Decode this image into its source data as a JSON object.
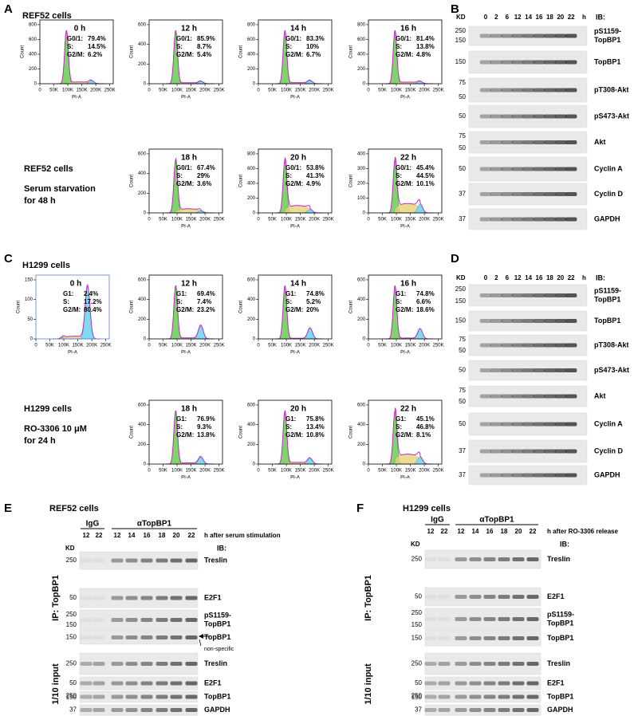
{
  "panels": {
    "A": {
      "label": "A",
      "title": "REF52 cells",
      "note": [
        "REF52 cells",
        "Serum starvation",
        "for 48 h"
      ],
      "xlabel": "PI-A",
      "ylabel": "Count",
      "xticks": [
        0,
        {
          "value": 50000,
          "label": "50K"
        },
        {
          "value": 100000,
          "label": "100K"
        },
        {
          "value": 150000,
          "label": "150K"
        },
        {
          "value": 200000,
          "label": "200K"
        },
        {
          "value": 250000,
          "label": "250K"
        }
      ],
      "plots": [
        {
          "time": "0 h",
          "yticks": [
            0,
            200,
            400,
            600,
            800
          ],
          "stats": [
            [
              "G0/1:",
              "79.4%"
            ],
            [
              "S:",
              "14.5%"
            ],
            [
              "G2/M:",
              "6.2%"
            ]
          ]
        },
        {
          "time": "12 h",
          "yticks": [
            0,
            200,
            400,
            600
          ],
          "stats": [
            [
              "G0/1:",
              "85.9%"
            ],
            [
              "S:",
              "8.7%"
            ],
            [
              "G2/M:",
              "5.4%"
            ]
          ]
        },
        {
          "time": "14 h",
          "yticks": [
            0,
            200,
            400,
            600,
            800
          ],
          "stats": [
            [
              "G0/1:",
              "83.3%"
            ],
            [
              "S:",
              "10%"
            ],
            [
              "G2/M:",
              "6.7%"
            ]
          ]
        },
        {
          "time": "16 h",
          "yticks": [
            0,
            200,
            400,
            600,
            800
          ],
          "stats": [
            [
              "G0/1:",
              "81.4%"
            ],
            [
              "S:",
              "13.8%"
            ],
            [
              "G2/M:",
              "4.8%"
            ]
          ]
        },
        {
          "time": "18 h",
          "yticks": [
            0,
            200,
            400,
            600
          ],
          "stats": [
            [
              "G0/1:",
              "67.4%"
            ],
            [
              "S:",
              "29%"
            ],
            [
              "G2/M:",
              "3.6%"
            ]
          ]
        },
        {
          "time": "20 h",
          "yticks": [
            0,
            200,
            400,
            600,
            800
          ],
          "stats": [
            [
              "G0/1:",
              "53.8%"
            ],
            [
              "S:",
              "41.3%"
            ],
            [
              "G2/M:",
              "4.9%"
            ]
          ]
        },
        {
          "time": "22 h",
          "yticks": [
            0,
            100,
            200,
            300,
            400
          ],
          "stats": [
            [
              "G0/1:",
              "45.4%"
            ],
            [
              "S:",
              "44.5%"
            ],
            [
              "G2/M:",
              "10.1%"
            ]
          ]
        }
      ]
    },
    "B": {
      "label": "B",
      "kd": "KD",
      "lanes": [
        "0",
        "2",
        "6",
        "12",
        "14",
        "16",
        "18",
        "20",
        "22"
      ],
      "unit": "h",
      "ib": "IB:",
      "rows": [
        {
          "kd": [
            "250",
            "150"
          ],
          "name": [
            "pS1159-",
            "TopBP1"
          ]
        },
        {
          "kd": [
            "150"
          ],
          "name": [
            "TopBP1"
          ]
        },
        {
          "kd": [
            "75",
            "50"
          ],
          "name": [
            "pT308-Akt"
          ]
        },
        {
          "kd": [
            "50"
          ],
          "name": [
            "pS473-Akt"
          ]
        },
        {
          "kd": [
            "75",
            "50"
          ],
          "name": [
            "Akt"
          ]
        },
        {
          "kd": [
            "50"
          ],
          "name": [
            "Cyclin A"
          ]
        },
        {
          "kd": [
            "37"
          ],
          "name": [
            "Cyclin D"
          ]
        },
        {
          "kd": [
            "37"
          ],
          "name": [
            "GAPDH"
          ]
        }
      ]
    },
    "C": {
      "label": "C",
      "title": "H1299 cells",
      "note": [
        "H1299 cells",
        "RO-3306 10 μM",
        "for 24 h"
      ],
      "xlabel": "PI-A",
      "ylabel": "Count",
      "xticks": [
        0,
        {
          "value": 50000,
          "label": "50K"
        },
        {
          "value": 100000,
          "label": "100K"
        },
        {
          "value": 150000,
          "label": "150K"
        },
        {
          "value": 200000,
          "label": "200K"
        },
        {
          "value": 250000,
          "label": "250K"
        }
      ],
      "plots": [
        {
          "time": "0 h",
          "yticks": [
            0,
            50,
            100,
            150
          ],
          "stats": [
            [
              "G1:",
              "2.4%"
            ],
            [
              "S:",
              "17.2%"
            ],
            [
              "G2/M:",
              "80.4%"
            ]
          ]
        },
        {
          "time": "12 h",
          "yticks": [
            0,
            200,
            400,
            600
          ],
          "stats": [
            [
              "G1:",
              "69.4%"
            ],
            [
              "S:",
              "7.4%"
            ],
            [
              "G2/M:",
              "23.2%"
            ]
          ]
        },
        {
          "time": "14 h",
          "yticks": [
            0,
            200,
            400,
            600
          ],
          "stats": [
            [
              "G1:",
              "74.8%"
            ],
            [
              "S:",
              "5.2%"
            ],
            [
              "G2/M:",
              "20%"
            ]
          ]
        },
        {
          "time": "16 h",
          "yticks": [
            0,
            200,
            400,
            600
          ],
          "stats": [
            [
              "G1:",
              "74.8%"
            ],
            [
              "S:",
              "6.6%"
            ],
            [
              "G2/M:",
              "18.6%"
            ]
          ]
        },
        {
          "time": "18 h",
          "yticks": [
            0,
            200,
            400,
            600
          ],
          "stats": [
            [
              "G1:",
              "76.9%"
            ],
            [
              "S:",
              "9.3%"
            ],
            [
              "G2/M:",
              "13.8%"
            ]
          ]
        },
        {
          "time": "20 h",
          "yticks": [
            0,
            200,
            400,
            600
          ],
          "stats": [
            [
              "G1:",
              "75.8%"
            ],
            [
              "S:",
              "13.4%"
            ],
            [
              "G2/M:",
              "10.8%"
            ]
          ]
        },
        {
          "time": "22 h",
          "yticks": [
            0,
            200,
            400,
            600
          ],
          "stats": [
            [
              "G1:",
              "45.1%"
            ],
            [
              "S:",
              "46.8%"
            ],
            [
              "G2/M:",
              "8.1%"
            ]
          ]
        }
      ]
    },
    "D": {
      "label": "D",
      "kd": "KD",
      "lanes": [
        "0",
        "2",
        "6",
        "12",
        "14",
        "16",
        "18",
        "20",
        "22"
      ],
      "unit": "h",
      "ib": "IB:",
      "rows": [
        {
          "kd": [
            "250",
            "150"
          ],
          "name": [
            "pS1159-",
            "TopBP1"
          ]
        },
        {
          "kd": [
            "150"
          ],
          "name": [
            "TopBP1"
          ]
        },
        {
          "kd": [
            "75",
            "50"
          ],
          "name": [
            "pT308-Akt"
          ]
        },
        {
          "kd": [
            "50"
          ],
          "name": [
            "pS473-Akt"
          ]
        },
        {
          "kd": [
            "75",
            "50"
          ],
          "name": [
            "Akt"
          ]
        },
        {
          "kd": [
            "50"
          ],
          "name": [
            "Cyclin A"
          ]
        },
        {
          "kd": [
            "37"
          ],
          "name": [
            "Cyclin D"
          ]
        },
        {
          "kd": [
            "37"
          ],
          "name": [
            "GAPDH"
          ]
        }
      ]
    },
    "E": {
      "label": "E",
      "title": "REF52 cells",
      "groups": [
        "IgG",
        "αTopBP1"
      ],
      "lanes": [
        "12",
        "22",
        "12",
        "14",
        "16",
        "18",
        "20",
        "22"
      ],
      "lane_note": "h after serum stimulation",
      "kd": "KD",
      "ib": "IB:",
      "annotation": "non-specific",
      "sections": [
        {
          "name": "IP: TopBP1",
          "rows": [
            {
              "kd": [
                "250"
              ],
              "name": [
                "Treslin"
              ]
            },
            {
              "kd": [
                "50"
              ],
              "name": [
                "E2F1"
              ]
            },
            {
              "kd": [
                "250",
                "150"
              ],
              "name": [
                "pS1159-",
                "TopBP1"
              ]
            },
            {
              "kd": [
                "150"
              ],
              "name": [
                "TopBP1"
              ]
            }
          ]
        },
        {
          "name": "1/10 input",
          "rows": [
            {
              "kd": [
                "250"
              ],
              "name": [
                "Treslin"
              ]
            },
            {
              "kd": [
                "50"
              ],
              "name": [
                "E2F1"
              ]
            },
            {
              "kd": [
                "250",
                "150"
              ],
              "name": [
                "TopBP1"
              ]
            },
            {
              "kd": [
                "37"
              ],
              "name": [
                "GAPDH"
              ]
            }
          ]
        }
      ]
    },
    "F": {
      "label": "F",
      "title": "H1299 cells",
      "groups": [
        "IgG",
        "αTopBP1"
      ],
      "lanes": [
        "12",
        "22",
        "12",
        "14",
        "16",
        "18",
        "20",
        "22"
      ],
      "lane_note": "h after RO-3306 release",
      "kd": "KD",
      "ib": "IB:",
      "sections": [
        {
          "name": "IP: TopBP1",
          "rows": [
            {
              "kd": [
                "250"
              ],
              "name": [
                "Treslin"
              ]
            },
            {
              "kd": [
                "50"
              ],
              "name": [
                "E2F1"
              ]
            },
            {
              "kd": [
                "250",
                "150"
              ],
              "name": [
                "pS1159-",
                "TopBP1"
              ]
            },
            {
              "kd": [
                "150"
              ],
              "name": [
                "TopBP1"
              ]
            }
          ]
        },
        {
          "name": "1/10 input",
          "rows": [
            {
              "kd": [
                "250"
              ],
              "name": [
                "Treslin"
              ]
            },
            {
              "kd": [
                "50"
              ],
              "name": [
                "E2F1"
              ]
            },
            {
              "kd": [
                "250",
                "150"
              ],
              "name": [
                "TopBP1"
              ]
            },
            {
              "kd": [
                "37"
              ],
              "name": [
                "GAPDH"
              ]
            }
          ]
        }
      ]
    }
  }
}
